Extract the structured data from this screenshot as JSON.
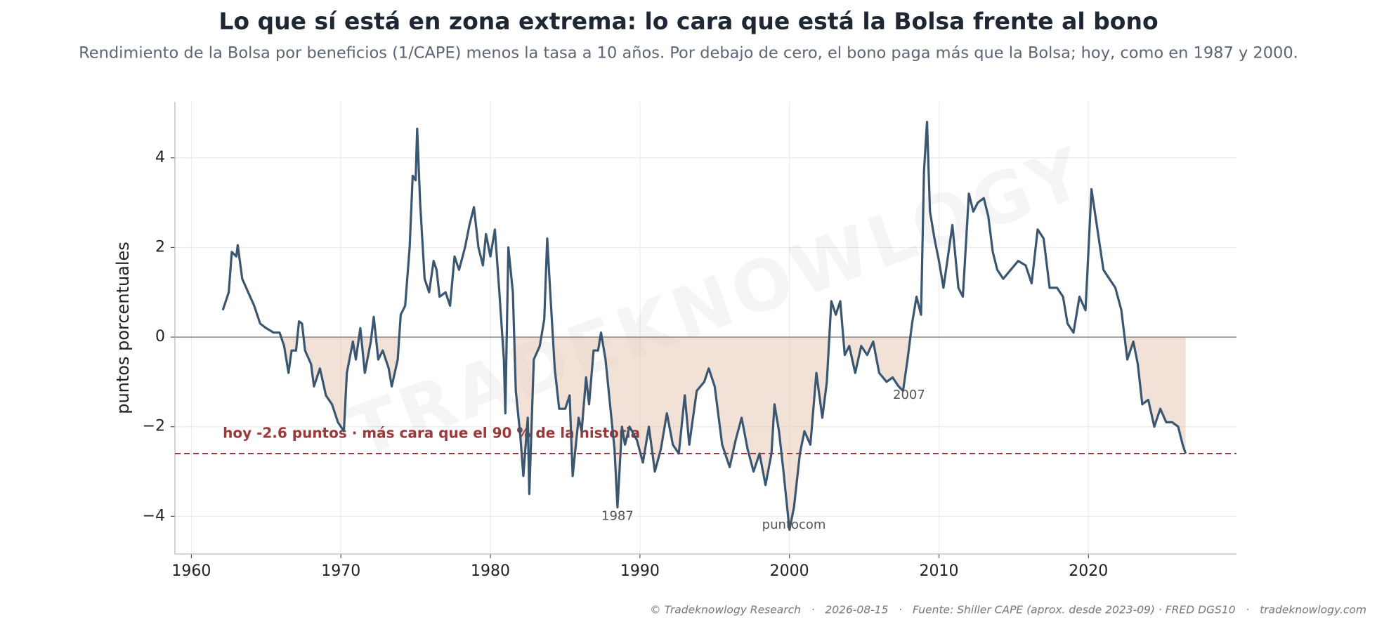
{
  "chart_data": {
    "type": "line",
    "title": "Lo que sí está en zona extrema: lo cara que está la Bolsa frente al bono",
    "subtitle": "Rendimiento de la Bolsa por beneficios (1/CAPE) menos la tasa a 10 años. Por debajo de cero, el bono paga más que la Bolsa; hoy, como en 1987 y 2000.",
    "ylabel": "puntos porcentuales",
    "watermark": "TRADEKNOWLOGY",
    "footer": "© Tradeknowlogy Research   ·   2026-08-15   ·   Fuente: Shiller CAPE (aprox. desde 2023-09) · FRED DGS10   ·   tradeknowlogy.com",
    "color": "#3a5670",
    "fill_color": "#e8c8b4",
    "reference_line": {
      "value": -2.6,
      "color": "#9b3a3a",
      "label": "hoy -2.6 puntos · más cara que el 90 % de la historia"
    },
    "annotations": [
      {
        "text": "1987",
        "x": 1988.5,
        "y": -4.0
      },
      {
        "text": "puntocom",
        "x": 2000.3,
        "y": -4.2
      },
      {
        "text": "2007",
        "x": 2008.0,
        "y": -1.3
      }
    ],
    "xlim": [
      1958.9,
      2029.9
    ],
    "ylim": [
      -4.84,
      5.25
    ],
    "xticks": [
      1960,
      1970,
      1980,
      1990,
      2000,
      2010,
      2020
    ],
    "yticks": [
      {
        "value": -4,
        "label": "−4"
      },
      {
        "value": -2,
        "label": "−2"
      },
      0,
      2,
      4
    ],
    "grid": true,
    "x": [
      1962.1,
      1962.5,
      1962.7,
      1963.0,
      1963.1,
      1963.4,
      1963.8,
      1964.2,
      1964.6,
      1965.0,
      1965.5,
      1965.9,
      1966.2,
      1966.5,
      1966.7,
      1967.0,
      1967.2,
      1967.4,
      1967.6,
      1968.0,
      1968.2,
      1968.6,
      1969.0,
      1969.4,
      1969.8,
      1970.2,
      1970.4,
      1970.8,
      1971.0,
      1971.3,
      1971.6,
      1972.0,
      1972.2,
      1972.5,
      1972.8,
      1973.2,
      1973.4,
      1973.8,
      1974.0,
      1974.3,
      1974.6,
      1974.8,
      1975.0,
      1975.1,
      1975.3,
      1975.6,
      1975.9,
      1976.2,
      1976.4,
      1976.6,
      1977.0,
      1977.3,
      1977.6,
      1977.9,
      1978.3,
      1978.6,
      1978.9,
      1979.2,
      1979.5,
      1979.7,
      1980.0,
      1980.3,
      1980.6,
      1980.9,
      1981.0,
      1981.2,
      1981.5,
      1981.7,
      1982.0,
      1982.2,
      1982.5,
      1982.6,
      1982.9,
      1983.3,
      1983.6,
      1983.8,
      1984.0,
      1984.3,
      1984.6,
      1985.0,
      1985.3,
      1985.5,
      1985.9,
      1986.1,
      1986.4,
      1986.6,
      1986.9,
      1987.2,
      1987.4,
      1987.7,
      1988.0,
      1988.3,
      1988.5,
      1988.8,
      1989.0,
      1989.3,
      1989.8,
      1990.2,
      1990.6,
      1991.0,
      1991.4,
      1991.8,
      1992.2,
      1992.6,
      1993.0,
      1993.3,
      1993.8,
      1994.3,
      1994.6,
      1995.0,
      1995.5,
      1996.0,
      1996.4,
      1996.8,
      1997.2,
      1997.6,
      1998.0,
      1998.4,
      1998.8,
      1999.0,
      1999.3,
      1999.6,
      2000.0,
      2000.3,
      2000.7,
      2001.0,
      2001.4,
      2001.8,
      2002.2,
      2002.5,
      2002.8,
      2003.1,
      2003.4,
      2003.7,
      2004.0,
      2004.4,
      2004.8,
      2005.2,
      2005.6,
      2006.0,
      2006.5,
      2006.9,
      2007.3,
      2007.6,
      2007.9,
      2008.2,
      2008.5,
      2008.8,
      2009.0,
      2009.2,
      2009.4,
      2009.7,
      2010.0,
      2010.3,
      2010.6,
      2010.9,
      2011.3,
      2011.6,
      2012.0,
      2012.3,
      2012.6,
      2013.0,
      2013.3,
      2013.6,
      2013.9,
      2014.3,
      2014.8,
      2015.3,
      2015.8,
      2016.2,
      2016.6,
      2017.0,
      2017.4,
      2017.9,
      2018.3,
      2018.6,
      2019.0,
      2019.4,
      2019.8,
      2020.2,
      2020.6,
      2021.0,
      2021.4,
      2021.8,
      2022.2,
      2022.6,
      2023.0,
      2023.3,
      2023.6,
      2024.0,
      2024.4,
      2024.8,
      2025.2,
      2025.6,
      2026.0,
      2026.3,
      2026.5
    ],
    "values": [
      0.6,
      1.0,
      1.9,
      1.8,
      2.05,
      1.3,
      1.0,
      0.7,
      0.3,
      0.2,
      0.1,
      0.1,
      -0.2,
      -0.8,
      -0.3,
      -0.3,
      0.35,
      0.3,
      -0.3,
      -0.6,
      -1.1,
      -0.7,
      -1.3,
      -1.5,
      -1.9,
      -2.1,
      -0.8,
      -0.1,
      -0.5,
      0.2,
      -0.8,
      -0.1,
      0.45,
      -0.5,
      -0.3,
      -0.7,
      -1.1,
      -0.5,
      0.5,
      0.7,
      2.0,
      3.6,
      3.5,
      4.65,
      3.0,
      1.3,
      1.0,
      1.7,
      1.5,
      0.9,
      1.0,
      0.7,
      1.8,
      1.5,
      2.0,
      2.5,
      2.9,
      2.0,
      1.6,
      2.3,
      1.8,
      2.4,
      1.0,
      -0.5,
      -1.7,
      2.0,
      1.0,
      -1.2,
      -2.2,
      -3.1,
      -1.8,
      -3.5,
      -0.5,
      -0.2,
      0.4,
      2.2,
      1.0,
      -0.7,
      -1.6,
      -1.6,
      -1.3,
      -3.1,
      -1.8,
      -2.1,
      -0.9,
      -1.5,
      -0.3,
      -0.3,
      0.1,
      -0.5,
      -1.5,
      -2.5,
      -3.8,
      -2.0,
      -2.4,
      -2.0,
      -2.3,
      -2.8,
      -2.0,
      -3.0,
      -2.5,
      -1.7,
      -2.4,
      -2.6,
      -1.3,
      -2.4,
      -1.2,
      -1.0,
      -0.7,
      -1.1,
      -2.4,
      -2.9,
      -2.3,
      -1.8,
      -2.5,
      -3.0,
      -2.6,
      -3.3,
      -2.6,
      -1.5,
      -2.1,
      -3.0,
      -4.3,
      -3.8,
      -2.6,
      -2.1,
      -2.4,
      -0.8,
      -1.8,
      -1.0,
      0.8,
      0.5,
      0.8,
      -0.4,
      -0.2,
      -0.8,
      -0.2,
      -0.4,
      -0.1,
      -0.8,
      -1.0,
      -0.9,
      -1.1,
      -1.2,
      -0.5,
      0.3,
      0.9,
      0.5,
      3.7,
      4.8,
      2.8,
      2.2,
      1.7,
      1.1,
      1.8,
      2.5,
      1.1,
      0.9,
      3.2,
      2.8,
      3.0,
      3.1,
      2.7,
      1.9,
      1.5,
      1.3,
      1.5,
      1.7,
      1.6,
      1.2,
      2.4,
      2.2,
      1.1,
      1.1,
      0.9,
      0.3,
      0.1,
      0.9,
      0.6,
      3.3,
      2.4,
      1.5,
      1.3,
      1.1,
      0.6,
      -0.5,
      -0.1,
      -0.6,
      -1.5,
      -1.4,
      -2.0,
      -1.6,
      -1.9,
      -1.9,
      -2.0,
      -2.4,
      -2.6
    ]
  }
}
